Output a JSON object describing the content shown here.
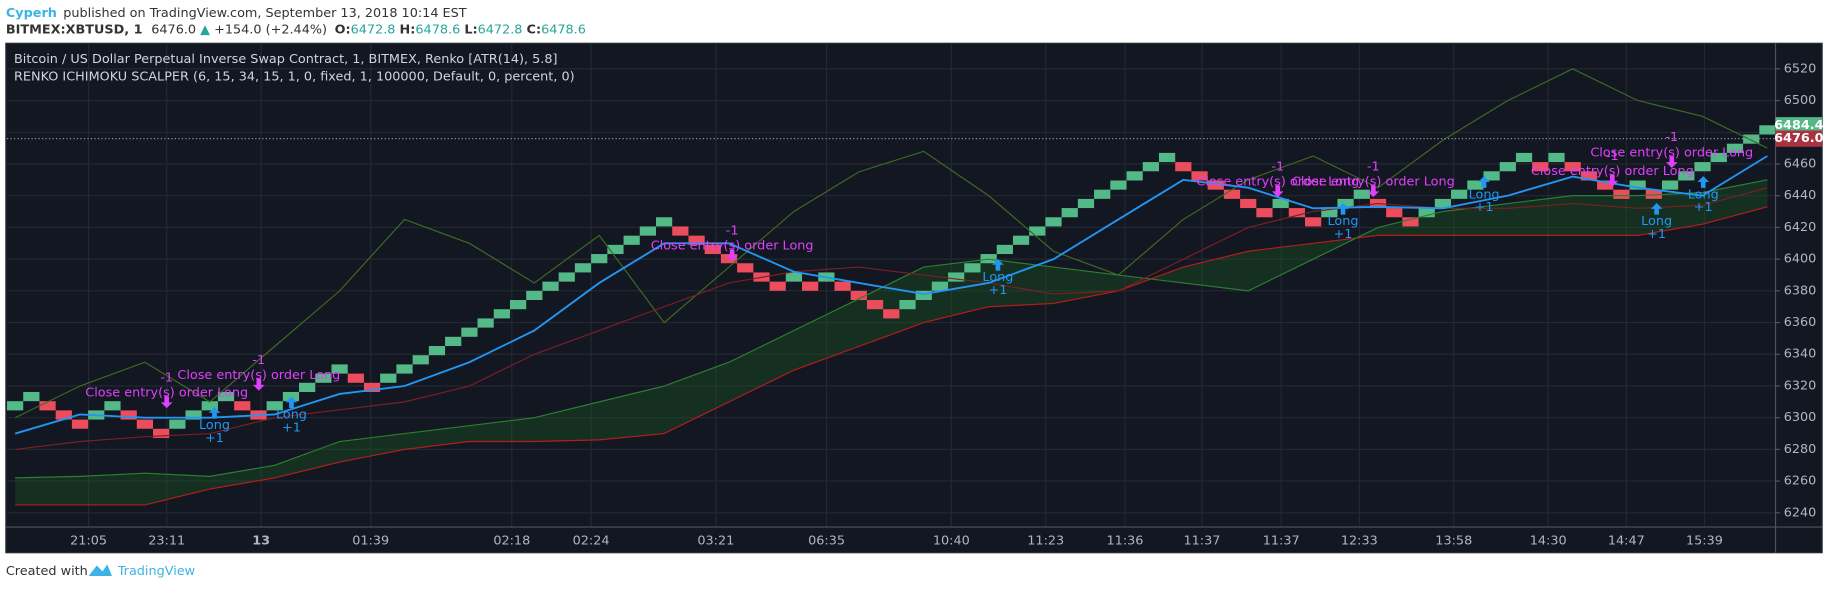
{
  "header": {
    "author": "Cyperh",
    "published": "published on TradingView.com, September 13, 2018 10:14 EST",
    "symbol": "BITMEX:XBTUSD, 1",
    "price": "6476.0",
    "arrow": "▲",
    "change": "+154.0 (+2.44%)",
    "ohlc": [
      {
        "key": "O:",
        "value": "6472.8"
      },
      {
        "key": "H:",
        "value": "6478.6"
      },
      {
        "key": "L:",
        "value": "6472.8"
      },
      {
        "key": "C:",
        "value": "6478.6"
      }
    ]
  },
  "chart_data": {
    "type": "renko",
    "title": "Bitcoin / US Dollar Perpetual Inverse Swap Contract, 1, BITMEX, Renko [ATR(14), 5.8]",
    "subtitle": "RENKO ICHIMOKU SCALPER (6, 15, 34, 15, 1, 0, fixed, 1, 100000, Default, 0, percent, 0)",
    "box_size": 5.8,
    "up_color": "#53b987",
    "down_color": "#eb4d5c",
    "values": [
      6310.4,
      6316.2,
      6304.6,
      6298.8,
      6293.0,
      6304.6,
      6310.4,
      6298.8,
      6293.0,
      6287.2,
      6298.8,
      6304.6,
      6310.4,
      6316.2,
      6304.6,
      6298.8,
      6310.4,
      6316.2,
      6322.0,
      6327.8,
      6333.6,
      6322.0,
      6316.2,
      6327.8,
      6333.6,
      6339.4,
      6345.2,
      6351.0,
      6356.8,
      6362.6,
      6368.4,
      6374.2,
      6380.0,
      6385.8,
      6391.6,
      6397.4,
      6403.2,
      6409.0,
      6414.8,
      6420.6,
      6426.4,
      6414.8,
      6409.0,
      6403.2,
      6397.4,
      6391.6,
      6385.8,
      6380.0,
      6391.6,
      6380.0,
      6391.6,
      6380.0,
      6374.2,
      6368.4,
      6362.6,
      6374.2,
      6380.0,
      6385.8,
      6391.6,
      6397.4,
      6403.2,
      6409.0,
      6414.8,
      6420.6,
      6426.4,
      6432.2,
      6438.0,
      6443.8,
      6449.6,
      6455.4,
      6461.2,
      6467.0,
      6455.4,
      6449.6,
      6443.8,
      6438.0,
      6432.2,
      6426.4,
      6438.0,
      6426.4,
      6420.6,
      6432.2,
      6438.0,
      6443.8,
      6432.2,
      6426.4,
      6420.6,
      6432.2,
      6438.0,
      6443.8,
      6449.6,
      6455.4,
      6461.2,
      6467.0,
      6455.4,
      6467.0,
      6455.4,
      6449.6,
      6443.8,
      6438.0,
      6449.6,
      6438.0,
      6449.6,
      6455.4,
      6461.2,
      6467.0,
      6472.8,
      6478.6,
      6484.4
    ],
    "lines": [
      {
        "color": "#3d6b22",
        "values": [
          6300,
          6320,
          6335,
          6310,
          6345,
          6380,
          6425,
          6410,
          6385,
          6415,
          6360,
          6395,
          6430,
          6455,
          6468,
          6440,
          6405,
          6390,
          6425,
          6450,
          6465,
          6445,
          6475,
          6500,
          6520,
          6500,
          6490,
          6470
        ]
      },
      {
        "color": "#b71c1c",
        "values": [
          6245,
          6245,
          6245,
          6255,
          6262,
          6272,
          6280,
          6285,
          6285,
          6286,
          6290,
          6310,
          6330,
          6345,
          6360,
          6370,
          6372,
          6380,
          6395,
          6405,
          6410,
          6415,
          6415,
          6415,
          6415,
          6415,
          6422,
          6433
        ]
      },
      {
        "color": "#2e7d32",
        "values": [
          6262,
          6263,
          6265,
          6263,
          6270,
          6285,
          6290,
          6295,
          6300,
          6310,
          6320,
          6335,
          6355,
          6375,
          6395,
          6400,
          6395,
          6390,
          6385,
          6380,
          6400,
          6420,
          6430,
          6435,
          6440,
          6440,
          6442,
          6450
        ]
      },
      {
        "color": "#7a1f24",
        "values": [
          6280,
          6285,
          6288,
          6290,
          6300,
          6305,
          6310,
          6320,
          6340,
          6355,
          6370,
          6385,
          6392,
          6395,
          6390,
          6385,
          6378,
          6380,
          6400,
          6420,
          6430,
          6435,
          6432,
          6432,
          6435,
          6432,
          6434,
          6445
        ]
      },
      {
        "color": "#2196f3",
        "values": [
          6290,
          6302,
          6300,
          6300,
          6302,
          6315,
          6320,
          6335,
          6355,
          6385,
          6410,
          6410,
          6392,
          6385,
          6378,
          6385,
          6400,
          6425,
          6450,
          6445,
          6432,
          6433,
          6432,
          6440,
          6452,
          6445,
          6440,
          6465
        ]
      }
    ],
    "cloud_color": "#1b5e20",
    "ylim": [
      6231,
      6535.4
    ],
    "yticks": [
      6240,
      6260,
      6280,
      6300,
      6320,
      6340,
      6360,
      6380,
      6400,
      6420,
      6440,
      6460,
      6480,
      6500,
      6520
    ],
    "xticks": [
      "21:05",
      "23:11",
      "13",
      "01:39",
      "02:18",
      "02:24",
      "03:21",
      "06:35",
      "10:40",
      "11:23",
      "11:36",
      "11:37",
      "11:37",
      "12:33",
      "13:58",
      "14:30",
      "14:47",
      "15:39"
    ],
    "grid": true,
    "last_brick": 6484.4,
    "last_price": {
      "value": 6476,
      "label": "6476.0"
    },
    "annotations": [
      {
        "label": "Close entry(s) order Long",
        "qty": "-1"
      },
      {
        "label": "Close entry(s) order Long",
        "qty": "-1"
      },
      {
        "label": "Close entry(s) order Long",
        "qty": "-1"
      },
      {
        "label": "Close entry(s) order Long",
        "qty": "-1"
      },
      {
        "label": "Close entry(s) order Long",
        "qty": "-1"
      },
      {
        "label": "Close entry(s) order Long",
        "qty": "-1"
      },
      {
        "label": "Close entry(s) order Long",
        "qty": "-1"
      },
      {
        "label": "Long",
        "qty": "+1"
      },
      {
        "label": "Long",
        "qty": "+1"
      },
      {
        "label": "Long",
        "qty": "+1"
      },
      {
        "label": "Long",
        "qty": "+1"
      },
      {
        "label": "Long",
        "qty": "+1"
      },
      {
        "label": "Long",
        "qty": "+1"
      },
      {
        "label": "Long",
        "qty": "+1"
      }
    ]
  },
  "footer": {
    "text": "Created with",
    "brand": "TradingView"
  }
}
